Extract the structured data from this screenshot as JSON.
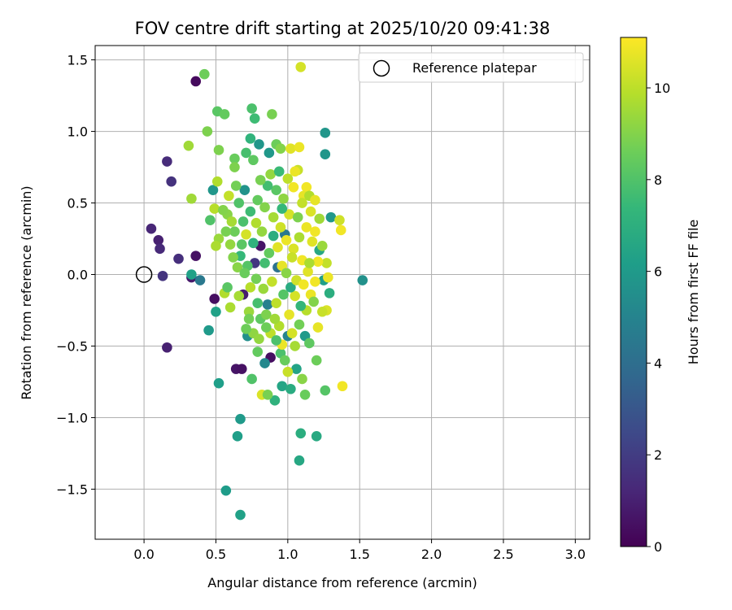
{
  "chart_data": {
    "type": "scatter",
    "title": "FOV centre drift starting at 2025/10/20 09:41:38",
    "xlabel": "Angular distance from reference (arcmin)",
    "ylabel": "Rotation from reference (arcmin)",
    "xlim": [
      -0.34,
      3.1
    ],
    "ylim": [
      -1.85,
      1.6
    ],
    "xticks": [
      0.0,
      0.5,
      1.0,
      1.5,
      2.0,
      2.5,
      3.0
    ],
    "xtick_labels": [
      "0.0",
      "0.5",
      "1.0",
      "1.5",
      "2.0",
      "2.5",
      "3.0"
    ],
    "yticks": [
      1.5,
      1.0,
      0.5,
      0.0,
      -0.5,
      -1.0,
      -1.5
    ],
    "ytick_labels": [
      "1.5",
      "1.0",
      "0.5",
      "0.0",
      "−0.5",
      "−1.0",
      "−1.5"
    ],
    "grid": true,
    "legend": {
      "position": "top-right",
      "entries": [
        "Reference platepar"
      ]
    },
    "reference_point": {
      "x": 0.0,
      "y": 0.0,
      "label": "Reference platepar"
    },
    "colorbar": {
      "label": "Hours from first FF file",
      "range": [
        0,
        11.1
      ],
      "ticks": [
        0,
        2,
        4,
        6,
        8,
        10
      ],
      "tick_labels": [
        "0",
        "2",
        "4",
        "6",
        "8",
        "10"
      ],
      "colormap": "viridis",
      "colormap_stops": [
        "#440154",
        "#482878",
        "#3e4989",
        "#31688e",
        "#26828e",
        "#1f9e89",
        "#35b779",
        "#6ece58",
        "#b5de2b",
        "#fde725"
      ]
    },
    "points": [
      {
        "x": 0.36,
        "y": 1.35,
        "h": 0.3
      },
      {
        "x": 0.16,
        "y": 0.79,
        "h": 1.4
      },
      {
        "x": 0.19,
        "y": 0.65,
        "h": 1.6
      },
      {
        "x": 0.05,
        "y": 0.32,
        "h": 1.2
      },
      {
        "x": 0.1,
        "y": 0.24,
        "h": 1.0
      },
      {
        "x": 0.11,
        "y": 0.18,
        "h": 1.3
      },
      {
        "x": 0.24,
        "y": 0.11,
        "h": 1.5
      },
      {
        "x": 0.36,
        "y": 0.13,
        "h": 0.5
      },
      {
        "x": 0.13,
        "y": -0.01,
        "h": 1.7
      },
      {
        "x": 0.33,
        "y": -0.02,
        "h": 0.8
      },
      {
        "x": 0.16,
        "y": -0.51,
        "h": 1.0
      },
      {
        "x": 0.49,
        "y": -0.17,
        "h": 0.4
      },
      {
        "x": 0.64,
        "y": -0.66,
        "h": 0.6
      },
      {
        "x": 0.68,
        "y": -0.66,
        "h": 0.5
      },
      {
        "x": 0.69,
        "y": -0.14,
        "h": 0.9
      },
      {
        "x": 0.81,
        "y": 0.2,
        "h": 0.6
      },
      {
        "x": 0.88,
        "y": -0.58,
        "h": 0.4
      },
      {
        "x": 0.77,
        "y": 0.08,
        "h": 1.8
      },
      {
        "x": 0.39,
        "y": -0.04,
        "h": 4.5
      },
      {
        "x": 0.33,
        "y": 0.0,
        "h": 6.3
      },
      {
        "x": 0.45,
        "y": -0.39,
        "h": 6.0
      },
      {
        "x": 0.5,
        "y": -0.26,
        "h": 6.3
      },
      {
        "x": 0.52,
        "y": -0.76,
        "h": 6.2
      },
      {
        "x": 0.67,
        "y": -1.01,
        "h": 6.0
      },
      {
        "x": 0.65,
        "y": -1.13,
        "h": 6.2
      },
      {
        "x": 0.57,
        "y": -1.51,
        "h": 6.1
      },
      {
        "x": 0.67,
        "y": -1.68,
        "h": 6.3
      },
      {
        "x": 1.08,
        "y": -1.3,
        "h": 6.6
      },
      {
        "x": 1.2,
        "y": -1.13,
        "h": 6.7
      },
      {
        "x": 1.09,
        "y": -1.11,
        "h": 6.9
      },
      {
        "x": 1.26,
        "y": 0.99,
        "h": 5.8
      },
      {
        "x": 1.26,
        "y": 0.84,
        "h": 5.8
      },
      {
        "x": 1.3,
        "y": 0.4,
        "h": 5.9
      },
      {
        "x": 1.52,
        "y": -0.04,
        "h": 5.6
      },
      {
        "x": 0.87,
        "y": 0.85,
        "h": 5.9
      },
      {
        "x": 0.8,
        "y": 0.91,
        "h": 5.8
      },
      {
        "x": 0.7,
        "y": 0.59,
        "h": 5.7
      },
      {
        "x": 0.48,
        "y": 0.59,
        "h": 5.8
      },
      {
        "x": 0.98,
        "y": 0.28,
        "h": 4.5
      },
      {
        "x": 0.93,
        "y": 0.05,
        "h": 4.2
      },
      {
        "x": 0.86,
        "y": -0.21,
        "h": 4.8
      },
      {
        "x": 1.0,
        "y": -0.43,
        "h": 5.0
      },
      {
        "x": 0.72,
        "y": -0.43,
        "h": 5.5
      },
      {
        "x": 0.84,
        "y": -0.62,
        "h": 5.2
      },
      {
        "x": 0.96,
        "y": -0.78,
        "h": 6.5
      },
      {
        "x": 1.02,
        "y": -0.8,
        "h": 6.8
      },
      {
        "x": 0.91,
        "y": -0.88,
        "h": 7.1
      },
      {
        "x": 1.06,
        "y": -0.66,
        "h": 6.4
      },
      {
        "x": 1.12,
        "y": -0.43,
        "h": 6.0
      },
      {
        "x": 1.25,
        "y": -0.04,
        "h": 6.2
      },
      {
        "x": 1.29,
        "y": -0.13,
        "h": 6.9
      },
      {
        "x": 1.22,
        "y": 0.17,
        "h": 6.6
      },
      {
        "x": 0.74,
        "y": 0.95,
        "h": 7.2
      },
      {
        "x": 0.77,
        "y": 1.09,
        "h": 7.6
      },
      {
        "x": 0.75,
        "y": 1.16,
        "h": 7.9
      },
      {
        "x": 0.51,
        "y": 1.14,
        "h": 8.2
      },
      {
        "x": 0.56,
        "y": 1.12,
        "h": 8.4
      },
      {
        "x": 0.89,
        "y": 1.12,
        "h": 8.8
      },
      {
        "x": 0.42,
        "y": 1.4,
        "h": 8.6
      },
      {
        "x": 0.44,
        "y": 1.0,
        "h": 8.9
      },
      {
        "x": 0.52,
        "y": 0.87,
        "h": 8.9
      },
      {
        "x": 0.31,
        "y": 0.9,
        "h": 9.5
      },
      {
        "x": 0.33,
        "y": 0.53,
        "h": 9.5
      },
      {
        "x": 0.51,
        "y": 0.65,
        "h": 9.8
      },
      {
        "x": 0.49,
        "y": 0.46,
        "h": 9.9
      },
      {
        "x": 0.52,
        "y": 0.25,
        "h": 9.4
      },
      {
        "x": 0.5,
        "y": 0.2,
        "h": 9.7
      },
      {
        "x": 0.58,
        "y": 0.42,
        "h": 9.1
      },
      {
        "x": 0.46,
        "y": 0.38,
        "h": 8.0
      },
      {
        "x": 0.63,
        "y": 0.81,
        "h": 8.5
      },
      {
        "x": 0.71,
        "y": 0.85,
        "h": 7.8
      },
      {
        "x": 0.76,
        "y": 0.8,
        "h": 8.3
      },
      {
        "x": 0.63,
        "y": 0.75,
        "h": 8.9
      },
      {
        "x": 0.64,
        "y": 0.62,
        "h": 8.7
      },
      {
        "x": 0.92,
        "y": 0.91,
        "h": 8.6
      },
      {
        "x": 0.95,
        "y": 0.88,
        "h": 9.0
      },
      {
        "x": 1.02,
        "y": 0.88,
        "h": 10.6
      },
      {
        "x": 1.08,
        "y": 0.89,
        "h": 10.8
      },
      {
        "x": 1.09,
        "y": 1.45,
        "h": 10.4
      },
      {
        "x": 1.07,
        "y": 0.73,
        "h": 10.2
      },
      {
        "x": 1.05,
        "y": 0.72,
        "h": 10.8
      },
      {
        "x": 1.13,
        "y": 0.61,
        "h": 10.9
      },
      {
        "x": 1.11,
        "y": 0.55,
        "h": 10.7
      },
      {
        "x": 1.16,
        "y": 0.44,
        "h": 10.5
      },
      {
        "x": 1.19,
        "y": 0.3,
        "h": 10.9
      },
      {
        "x": 1.22,
        "y": 0.39,
        "h": 9.5
      },
      {
        "x": 1.36,
        "y": 0.38,
        "h": 10.3
      },
      {
        "x": 1.37,
        "y": 0.31,
        "h": 10.9
      },
      {
        "x": 1.27,
        "y": 0.08,
        "h": 10.1
      },
      {
        "x": 1.27,
        "y": -0.25,
        "h": 10.5
      },
      {
        "x": 1.24,
        "y": -0.26,
        "h": 10.2
      },
      {
        "x": 1.21,
        "y": -0.37,
        "h": 10.7
      },
      {
        "x": 1.38,
        "y": -0.78,
        "h": 10.9
      },
      {
        "x": 1.15,
        "y": -0.48,
        "h": 8.3
      },
      {
        "x": 1.2,
        "y": -0.6,
        "h": 8.6
      },
      {
        "x": 1.26,
        "y": -0.81,
        "h": 8.1
      },
      {
        "x": 1.12,
        "y": -0.84,
        "h": 8.5
      },
      {
        "x": 1.1,
        "y": -0.73,
        "h": 9.1
      },
      {
        "x": 1.0,
        "y": -0.68,
        "h": 10.2
      },
      {
        "x": 0.82,
        "y": -0.84,
        "h": 10.5
      },
      {
        "x": 0.86,
        "y": -0.84,
        "h": 8.8
      },
      {
        "x": 0.75,
        "y": -0.73,
        "h": 8.0
      },
      {
        "x": 0.79,
        "y": -0.54,
        "h": 8.4
      },
      {
        "x": 0.95,
        "y": -0.55,
        "h": 7.9
      },
      {
        "x": 0.96,
        "y": -0.49,
        "h": 10.8
      },
      {
        "x": 1.03,
        "y": -0.41,
        "h": 10.4
      },
      {
        "x": 0.88,
        "y": -0.41,
        "h": 10.0
      },
      {
        "x": 0.76,
        "y": -0.41,
        "h": 9.2
      },
      {
        "x": 0.71,
        "y": -0.38,
        "h": 8.6
      },
      {
        "x": 0.56,
        "y": -0.13,
        "h": 9.8
      },
      {
        "x": 0.58,
        "y": -0.09,
        "h": 8.2
      },
      {
        "x": 0.6,
        "y": -0.23,
        "h": 9.7
      },
      {
        "x": 0.65,
        "y": 0.05,
        "h": 9.1
      },
      {
        "x": 0.66,
        "y": -0.15,
        "h": 9.6
      },
      {
        "x": 0.73,
        "y": -0.26,
        "h": 9.4
      },
      {
        "x": 0.81,
        "y": -0.31,
        "h": 8.3
      },
      {
        "x": 0.85,
        "y": -0.28,
        "h": 8.9
      },
      {
        "x": 0.92,
        "y": -0.2,
        "h": 10.0
      },
      {
        "x": 0.94,
        "y": -0.36,
        "h": 9.8
      },
      {
        "x": 1.01,
        "y": -0.28,
        "h": 10.7
      },
      {
        "x": 1.05,
        "y": -0.15,
        "h": 10.4
      },
      {
        "x": 1.08,
        "y": -0.35,
        "h": 8.7
      },
      {
        "x": 1.13,
        "y": -0.25,
        "h": 9.9
      },
      {
        "x": 1.16,
        "y": -0.14,
        "h": 10.8
      },
      {
        "x": 1.19,
        "y": -0.05,
        "h": 10.9
      },
      {
        "x": 1.14,
        "y": 0.02,
        "h": 10.6
      },
      {
        "x": 1.1,
        "y": 0.1,
        "h": 10.9
      },
      {
        "x": 1.04,
        "y": 0.18,
        "h": 10.5
      },
      {
        "x": 0.99,
        "y": 0.24,
        "h": 10.8
      },
      {
        "x": 0.95,
        "y": 0.33,
        "h": 10.3
      },
      {
        "x": 0.9,
        "y": 0.4,
        "h": 9.6
      },
      {
        "x": 0.84,
        "y": 0.47,
        "h": 9.0
      },
      {
        "x": 0.79,
        "y": 0.52,
        "h": 8.4
      },
      {
        "x": 0.74,
        "y": 0.44,
        "h": 7.6
      },
      {
        "x": 0.69,
        "y": 0.37,
        "h": 7.9
      },
      {
        "x": 0.63,
        "y": 0.3,
        "h": 8.6
      },
      {
        "x": 0.6,
        "y": 0.21,
        "h": 9.3
      },
      {
        "x": 0.67,
        "y": 0.13,
        "h": 7.4
      },
      {
        "x": 0.72,
        "y": 0.06,
        "h": 8.1
      },
      {
        "x": 0.78,
        "y": -0.03,
        "h": 8.7
      },
      {
        "x": 0.83,
        "y": -0.1,
        "h": 9.4
      },
      {
        "x": 0.89,
        "y": -0.05,
        "h": 10.1
      },
      {
        "x": 0.96,
        "y": 0.06,
        "h": 10.7
      },
      {
        "x": 1.03,
        "y": 0.12,
        "h": 10.2
      },
      {
        "x": 1.08,
        "y": 0.26,
        "h": 9.7
      },
      {
        "x": 1.13,
        "y": 0.33,
        "h": 10.8
      },
      {
        "x": 1.01,
        "y": 0.42,
        "h": 10.4
      },
      {
        "x": 0.97,
        "y": 0.53,
        "h": 9.2
      },
      {
        "x": 0.92,
        "y": 0.59,
        "h": 8.2
      },
      {
        "x": 0.86,
        "y": 0.62,
        "h": 7.7
      },
      {
        "x": 0.81,
        "y": 0.66,
        "h": 8.8
      },
      {
        "x": 0.88,
        "y": 0.7,
        "h": 9.3
      },
      {
        "x": 0.94,
        "y": 0.72,
        "h": 7.5
      },
      {
        "x": 1.0,
        "y": 0.67,
        "h": 10.0
      },
      {
        "x": 1.04,
        "y": 0.61,
        "h": 10.9
      },
      {
        "x": 1.1,
        "y": 0.5,
        "h": 10.1
      },
      {
        "x": 1.15,
        "y": 0.55,
        "h": 9.8
      },
      {
        "x": 1.17,
        "y": 0.23,
        "h": 10.6
      },
      {
        "x": 1.21,
        "y": 0.09,
        "h": 10.9
      },
      {
        "x": 1.18,
        "y": -0.19,
        "h": 9.0
      },
      {
        "x": 1.09,
        "y": -0.22,
        "h": 7.3
      },
      {
        "x": 1.02,
        "y": -0.09,
        "h": 6.8
      },
      {
        "x": 0.97,
        "y": -0.14,
        "h": 8.1
      },
      {
        "x": 0.91,
        "y": -0.31,
        "h": 9.5
      },
      {
        "x": 0.85,
        "y": -0.37,
        "h": 8.6
      },
      {
        "x": 0.79,
        "y": -0.2,
        "h": 7.8
      },
      {
        "x": 0.74,
        "y": -0.09,
        "h": 9.9
      },
      {
        "x": 0.7,
        "y": 0.01,
        "h": 8.5
      },
      {
        "x": 0.62,
        "y": 0.12,
        "h": 9.0
      },
      {
        "x": 0.57,
        "y": 0.3,
        "h": 8.8
      },
      {
        "x": 0.61,
        "y": 0.37,
        "h": 9.6
      },
      {
        "x": 0.66,
        "y": 0.5,
        "h": 8.0
      },
      {
        "x": 0.71,
        "y": 0.28,
        "h": 10.4
      },
      {
        "x": 0.76,
        "y": 0.22,
        "h": 7.1
      },
      {
        "x": 0.82,
        "y": 0.3,
        "h": 9.3
      },
      {
        "x": 0.87,
        "y": 0.15,
        "h": 8.4
      },
      {
        "x": 0.93,
        "y": 0.19,
        "h": 10.6
      },
      {
        "x": 0.99,
        "y": 0.01,
        "h": 9.1
      },
      {
        "x": 1.06,
        "y": -0.04,
        "h": 10.3
      },
      {
        "x": 1.11,
        "y": -0.07,
        "h": 10.9
      },
      {
        "x": 1.15,
        "y": 0.08,
        "h": 9.7
      },
      {
        "x": 1.07,
        "y": 0.4,
        "h": 8.9
      },
      {
        "x": 0.96,
        "y": 0.46,
        "h": 7.4
      },
      {
        "x": 0.9,
        "y": 0.27,
        "h": 6.9
      },
      {
        "x": 0.84,
        "y": 0.08,
        "h": 7.7
      },
      {
        "x": 0.78,
        "y": 0.36,
        "h": 9.8
      },
      {
        "x": 0.68,
        "y": 0.21,
        "h": 8.2
      },
      {
        "x": 0.59,
        "y": 0.55,
        "h": 10.1
      },
      {
        "x": 0.55,
        "y": 0.45,
        "h": 9.0
      },
      {
        "x": 1.19,
        "y": 0.52,
        "h": 10.7
      },
      {
        "x": 1.24,
        "y": 0.2,
        "h": 9.4
      },
      {
        "x": 1.28,
        "y": -0.02,
        "h": 10.8
      },
      {
        "x": 1.05,
        "y": -0.5,
        "h": 9.6
      },
      {
        "x": 0.98,
        "y": -0.6,
        "h": 8.5
      },
      {
        "x": 0.92,
        "y": -0.46,
        "h": 7.9
      },
      {
        "x": 0.8,
        "y": -0.45,
        "h": 9.3
      },
      {
        "x": 0.73,
        "y": -0.31,
        "h": 8.7
      }
    ]
  }
}
